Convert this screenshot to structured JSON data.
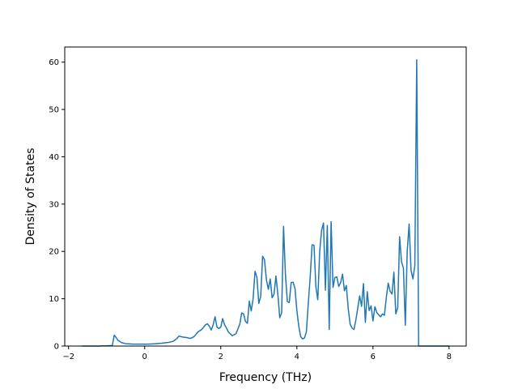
{
  "chart_data": {
    "type": "line",
    "title": "",
    "xlabel": "Frequency (THz)",
    "ylabel": "Density of States",
    "xlim": [
      -2.1,
      8.45
    ],
    "ylim": [
      0,
      63.2
    ],
    "xticks": [
      -2,
      0,
      2,
      4,
      6,
      8
    ],
    "xtick_labels": [
      "−2",
      "0",
      "2",
      "4",
      "6",
      "8"
    ],
    "yticks": [
      0,
      10,
      20,
      30,
      40,
      50,
      60
    ],
    "ytick_labels": [
      "0",
      "10",
      "20",
      "30",
      "40",
      "50",
      "60"
    ],
    "grid": false,
    "legend": "none",
    "line_color": "#1f77b4",
    "series": [
      {
        "x": [
          -1.65,
          -1.2,
          -0.85,
          -0.8,
          -0.75,
          -0.7,
          -0.6,
          -0.5,
          -0.3,
          -0.1,
          0.1,
          0.3,
          0.45,
          0.55,
          0.65,
          0.75,
          0.85,
          0.9,
          1.0,
          1.1,
          1.2,
          1.3,
          1.4,
          1.5,
          1.6,
          1.65,
          1.7,
          1.75,
          1.8,
          1.85,
          1.9,
          1.95,
          2.0,
          2.05,
          2.1,
          2.15,
          2.2,
          2.3,
          2.4,
          2.5,
          2.55,
          2.6,
          2.65,
          2.7,
          2.75,
          2.8,
          2.85,
          2.9,
          2.95,
          3.0,
          3.05,
          3.1,
          3.15,
          3.2,
          3.25,
          3.3,
          3.35,
          3.4,
          3.45,
          3.5,
          3.55,
          3.6,
          3.65,
          3.7,
          3.75,
          3.8,
          3.85,
          3.9,
          3.95,
          4.0,
          4.05,
          4.1,
          4.15,
          4.2,
          4.25,
          4.3,
          4.35,
          4.4,
          4.45,
          4.5,
          4.55,
          4.6,
          4.65,
          4.7,
          4.75,
          4.8,
          4.85,
          4.9,
          4.95,
          5.0,
          5.05,
          5.1,
          5.15,
          5.2,
          5.25,
          5.3,
          5.35,
          5.4,
          5.45,
          5.5,
          5.55,
          5.6,
          5.65,
          5.7,
          5.75,
          5.8,
          5.85,
          5.9,
          5.95,
          6.0,
          6.05,
          6.1,
          6.15,
          6.2,
          6.25,
          6.3,
          6.35,
          6.4,
          6.45,
          6.5,
          6.55,
          6.6,
          6.65,
          6.7,
          6.75,
          6.8,
          6.85,
          6.9,
          6.95,
          7.0,
          7.05,
          7.1,
          7.15,
          7.2,
          7.25,
          7.5,
          8.0
        ],
        "y": [
          0,
          0,
          0.1,
          2.3,
          1.8,
          1.2,
          0.7,
          0.5,
          0.4,
          0.4,
          0.4,
          0.5,
          0.6,
          0.7,
          0.8,
          1.0,
          1.6,
          2.1,
          1.9,
          1.8,
          1.6,
          2.0,
          3.0,
          3.5,
          4.5,
          4.7,
          4.2,
          3.4,
          4.5,
          6.2,
          4.0,
          3.7,
          4.0,
          5.8,
          4.5,
          3.8,
          3.0,
          2.2,
          2.6,
          4.6,
          7.0,
          6.8,
          5.2,
          4.8,
          9.5,
          7.4,
          10.0,
          15.8,
          14.5,
          9.0,
          10.5,
          19.0,
          18.2,
          14.0,
          12.0,
          14.2,
          10.2,
          11.0,
          14.8,
          11.0,
          6.0,
          7.0,
          25.3,
          15.0,
          9.4,
          9.2,
          13.4,
          13.5,
          12.2,
          7.5,
          4.2,
          2.0,
          1.5,
          1.7,
          3.0,
          9.0,
          14.5,
          21.4,
          21.3,
          12.5,
          9.8,
          20.0,
          24.5,
          26.0,
          11.8,
          25.5,
          3.5,
          26.3,
          12.4,
          14.5,
          14.6,
          12.6,
          13.4,
          15.2,
          11.7,
          12.8,
          7.9,
          4.6,
          3.8,
          3.5,
          5.5,
          8.0,
          10.6,
          8.4,
          13.2,
          5.0,
          11.5,
          7.5,
          8.5,
          5.3,
          8.3,
          7.1,
          6.6,
          6.2,
          6.8,
          6.5,
          10.2,
          13.3,
          11.6,
          11.0,
          15.6,
          6.8,
          8.1,
          23.1,
          17.8,
          16.5,
          4.4,
          20.0,
          25.8,
          16.0,
          14.2,
          17.0,
          60.5,
          0,
          0,
          0,
          0
        ]
      }
    ]
  }
}
